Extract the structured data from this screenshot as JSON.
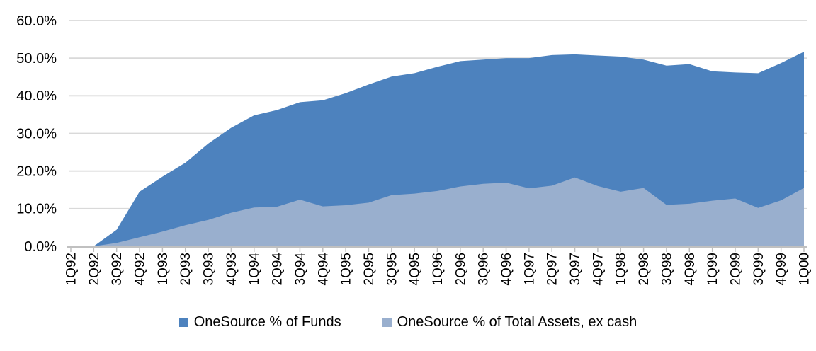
{
  "chart_data": {
    "type": "area",
    "title": "",
    "categories": [
      "1Q92",
      "2Q92",
      "3Q92",
      "4Q92",
      "1Q93",
      "2Q93",
      "3Q93",
      "4Q93",
      "1Q94",
      "2Q94",
      "3Q94",
      "4Q94",
      "1Q95",
      "2Q95",
      "3Q95",
      "4Q95",
      "1Q96",
      "2Q96",
      "3Q96",
      "4Q96",
      "1Q97",
      "2Q97",
      "3Q97",
      "4Q97",
      "1Q98",
      "2Q98",
      "3Q98",
      "4Q98",
      "1Q99",
      "2Q99",
      "3Q99",
      "4Q99",
      "1Q00"
    ],
    "series": [
      {
        "name": "OneSource % of Funds",
        "color": "#4D82BE",
        "values": [
          0.0,
          0.0,
          4.4,
          14.5,
          18.5,
          22.2,
          27.3,
          31.5,
          34.8,
          36.2,
          38.3,
          38.8,
          40.7,
          43.0,
          45.1,
          46.0,
          47.7,
          49.2,
          49.6,
          50.0,
          50.0,
          50.8,
          51.0,
          50.7,
          50.4,
          49.6,
          48.0,
          48.4,
          46.5,
          46.2,
          46.0,
          48.7,
          51.7
        ]
      },
      {
        "name": "OneSource % of Total Assets, ex cash",
        "color": "#99AFCE",
        "values": [
          0.0,
          0.0,
          0.9,
          2.4,
          3.9,
          5.6,
          7.0,
          8.9,
          10.3,
          10.5,
          12.4,
          10.6,
          10.9,
          11.6,
          13.6,
          14.0,
          14.7,
          15.9,
          16.6,
          16.9,
          15.4,
          16.1,
          18.3,
          16.0,
          14.5,
          15.5,
          11.0,
          11.3,
          12.1,
          12.7,
          10.2,
          12.2,
          15.5
        ]
      }
    ],
    "xlabel": "",
    "ylabel": "",
    "ylim": [
      0,
      60
    ],
    "ytick_step": 10,
    "ytick_labels": [
      "0.0%",
      "10.0%",
      "20.0%",
      "30.0%",
      "40.0%",
      "50.0%",
      "60.0%"
    ],
    "grid": true,
    "gridline_color": "#D9D9D9",
    "axis_color": "#C0C0C0",
    "legend_position": "bottom",
    "x_label_rotation": -90
  }
}
